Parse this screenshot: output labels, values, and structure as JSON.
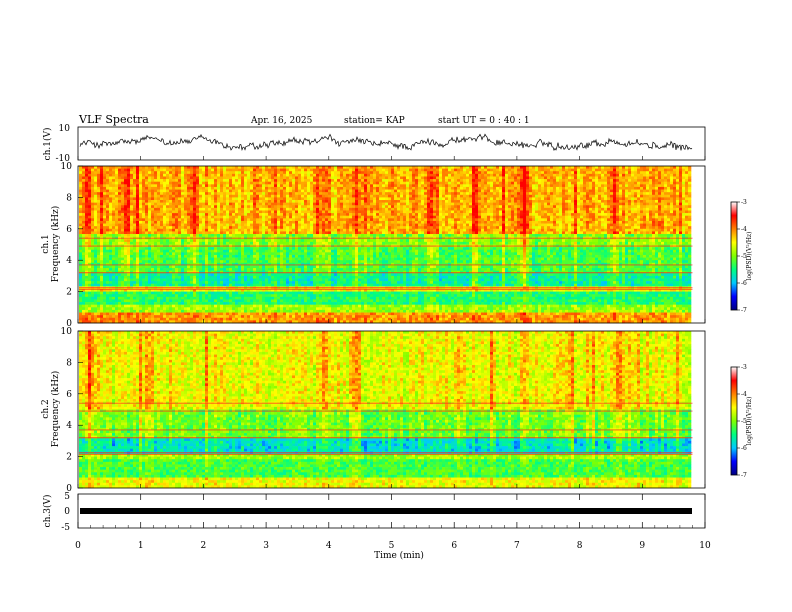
{
  "header": {
    "title": "VLF Spectra",
    "date": "Apr. 16, 2025",
    "station": "station= KAP",
    "start": "start  UT =   0 : 40 : 1"
  },
  "colors": {
    "colormap": [
      "#000080",
      "#0000ff",
      "#00c8ff",
      "#00ff80",
      "#80ff00",
      "#ffff00",
      "#ff8000",
      "#ff0000",
      "#ffffff"
    ],
    "waveform": "#000000"
  },
  "chart_data": [
    {
      "type": "line",
      "panel": "ch1-waveform",
      "ylabel": "ch.1(V)",
      "ylim": [
        -10,
        10
      ],
      "y_tick_labels": [
        "10",
        "-10"
      ],
      "xlim": [
        0,
        10
      ],
      "approx_range": [
        -6,
        6
      ],
      "description_values": {
        "mean": 0,
        "amplitude": 5
      }
    },
    {
      "type": "heatmap",
      "panel": "ch1-spectrogram",
      "ylabel": "ch.1\nFrequency  (kHz)",
      "ylabel_lines": [
        "ch.1",
        "Frequency  (kHz)"
      ],
      "ylim": [
        0,
        10
      ],
      "y_tick_labels": [
        "0",
        "2",
        "4",
        "6",
        "8",
        "10"
      ],
      "xlim": [
        0,
        9.8
      ],
      "colorbar": {
        "label": "log(PSD)(V²/Hz)",
        "range": [
          -7,
          -3
        ],
        "tick_labels": [
          "-3",
          "-4",
          "-5",
          "-6",
          "-7"
        ]
      },
      "bands_log_psd": [
        {
          "freq_khz": [
            0,
            0.6
          ],
          "value": -3.7
        },
        {
          "freq_khz": [
            0.6,
            1.2
          ],
          "value": -4.6
        },
        {
          "freq_khz": [
            1.2,
            2.0
          ],
          "value": -5.2
        },
        {
          "freq_khz": [
            2.0,
            2.4
          ],
          "value": -4.2
        },
        {
          "freq_khz": [
            2.4,
            3.2
          ],
          "value": -5.4
        },
        {
          "freq_khz": [
            3.2,
            4.8
          ],
          "value": -5.0
        },
        {
          "freq_khz": [
            4.8,
            5.6
          ],
          "value": -4.7
        },
        {
          "freq_khz": [
            5.6,
            10
          ],
          "value": -3.8
        }
      ],
      "bright_times_min": [
        0.1,
        0.7,
        1.8,
        3.9,
        4.4,
        5.6,
        6.3,
        7.1,
        8.5
      ]
    },
    {
      "type": "heatmap",
      "panel": "ch2-spectrogram",
      "ylabel": "ch.2\nFrequency  (kHz)",
      "ylabel_lines": [
        "ch.2",
        "Frequency  (kHz)"
      ],
      "ylim": [
        0,
        10
      ],
      "y_tick_labels": [
        "0",
        "2",
        "4",
        "6",
        "8",
        "10"
      ],
      "xlim": [
        0,
        9.8
      ],
      "colorbar": {
        "label": "log(PSD)(V²/Hz)",
        "range": [
          -7,
          -3
        ],
        "tick_labels": [
          "-3",
          "-4",
          "-5",
          "-6",
          "-7"
        ]
      },
      "bands_log_psd": [
        {
          "freq_khz": [
            0,
            0.6
          ],
          "value": -4.2
        },
        {
          "freq_khz": [
            0.6,
            1.8
          ],
          "value": -5.0
        },
        {
          "freq_khz": [
            1.8,
            2.2
          ],
          "value": -4.6
        },
        {
          "freq_khz": [
            2.2,
            3.2
          ],
          "value": -5.6
        },
        {
          "freq_khz": [
            3.2,
            5.0
          ],
          "value": -4.8
        },
        {
          "freq_khz": [
            5.0,
            10
          ],
          "value": -4.2
        }
      ],
      "bright_times_min": [
        0.2,
        1.1,
        3.9,
        4.4,
        7.1,
        8.6
      ]
    },
    {
      "type": "line",
      "panel": "ch3-waveform",
      "ylabel": "ch.3(V)",
      "ylim": [
        -5,
        5
      ],
      "y_tick_labels": [
        "5",
        "0",
        "-5"
      ],
      "xlim": [
        0,
        10
      ],
      "approx_range": [
        -0.4,
        0.4
      ],
      "xlabel": "Time  (min)",
      "x_ticks": [
        0,
        1,
        2,
        3,
        4,
        5,
        6,
        7,
        8,
        9,
        10
      ]
    }
  ]
}
